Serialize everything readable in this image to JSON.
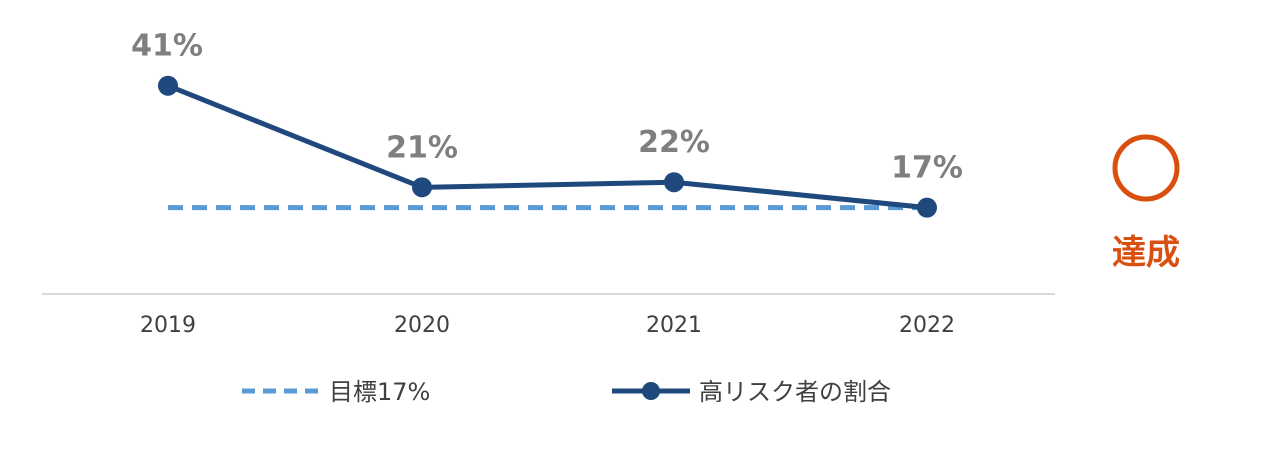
{
  "chart_data": {
    "type": "line",
    "categories": [
      "2019",
      "2020",
      "2021",
      "2022"
    ],
    "series": [
      {
        "name": "目標17%",
        "values": [
          17,
          17,
          17,
          17
        ],
        "style": "dashed",
        "color": "#5b9bd5",
        "markers": false
      },
      {
        "name": "高リスク者の割合",
        "values": [
          41,
          21,
          22,
          17
        ],
        "style": "solid",
        "color": "#1f497d",
        "markers": true
      }
    ],
    "data_labels": [
      "41%",
      "21%",
      "22%",
      "17%"
    ],
    "ylim": [
      0,
      50
    ],
    "grid": false,
    "legend_position": "bottom",
    "title": "",
    "xlabel": "",
    "ylabel": ""
  },
  "status": {
    "symbol": "◯",
    "text": "達成",
    "color": "#d94f0f"
  },
  "colors": {
    "axis": "#d9d9d9",
    "tick_text": "#404040",
    "data_label_text": "#7f7f7f"
  }
}
